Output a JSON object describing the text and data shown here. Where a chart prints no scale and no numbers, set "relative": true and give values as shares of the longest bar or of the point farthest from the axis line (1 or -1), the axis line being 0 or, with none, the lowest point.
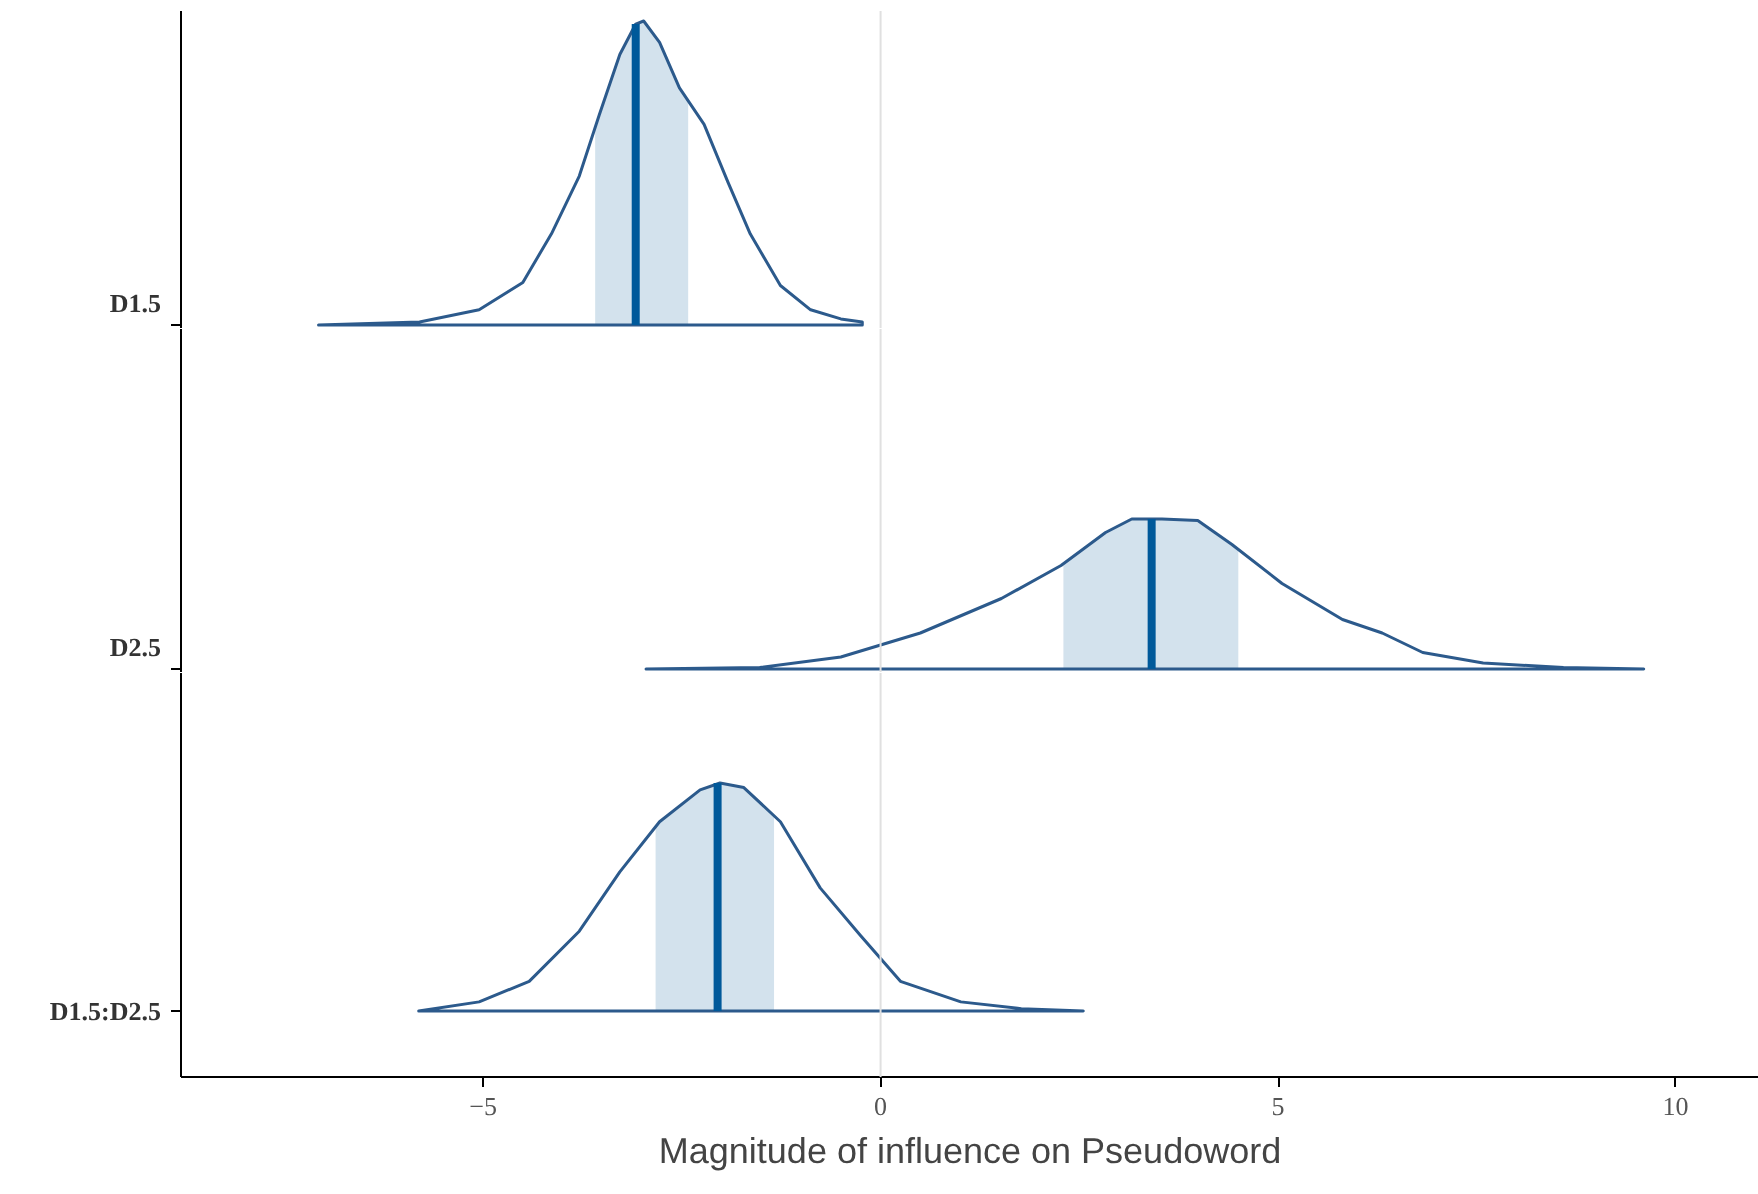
{
  "chart_data": [
    {
      "type": "area",
      "relative": true,
      "xticks": [
        -5,
        0,
        5,
        10
      ],
      "tick_labels": false,
      "grid": false,
      "ref_lines": [
        {
          "axis": "x",
          "value": 0,
          "color": "#e0e0e0"
        }
      ],
      "bands": [
        {
          "axis": "x",
          "from": -3.59,
          "to": -2.42,
          "color": "#d1e1ec"
        }
      ],
      "series": [
        {
          "name": "D1.5",
          "color": "#2c5a8c",
          "x": [
            -7.07,
            -5.8,
            -5.05,
            -4.5,
            -4.14,
            -3.79,
            -3.54,
            -3.28,
            -3.08,
            -2.98,
            -2.78,
            -2.53,
            -2.22,
            -1.92,
            -1.64,
            -1.26,
            -0.88,
            -0.5,
            -0.23
          ],
          "values": [
            0,
            0.01,
            0.05,
            0.14,
            0.3,
            0.49,
            0.69,
            0.89,
            0.99,
            1,
            0.93,
            0.78,
            0.66,
            0.47,
            0.3,
            0.13,
            0.05,
            0.02,
            0.01
          ]
        },
        {
          "type": "line",
          "color": "#00599a",
          "x": [
            -3.08,
            -3.08
          ],
          "values": [
            0,
            0.99
          ]
        }
      ]
    },
    {
      "type": "area",
      "relative": true,
      "xticks": [
        -5,
        0,
        5,
        10
      ],
      "tick_labels": false,
      "grid": false,
      "ref_lines": [
        {
          "axis": "x",
          "value": 0,
          "color": "#e0e0e0"
        }
      ],
      "bands": [
        {
          "axis": "x",
          "from": 2.3,
          "to": 4.5,
          "color": "#d1e1ec"
        }
      ],
      "series": [
        {
          "name": "D2.5",
          "color": "#2c5a8c",
          "x": [
            -2.95,
            -1.52,
            -0.5,
            0.5,
            1.52,
            2.27,
            2.83,
            3.16,
            3.54,
            3.99,
            4.42,
            5.05,
            5.81,
            6.31,
            6.82,
            7.58,
            8.59,
            9.6
          ],
          "values": [
            0,
            0.01,
            0.08,
            0.24,
            0.47,
            0.69,
            0.91,
            1,
            1,
            0.99,
            0.83,
            0.57,
            0.33,
            0.24,
            0.11,
            0.04,
            0.01,
            0
          ]
        },
        {
          "type": "line",
          "color": "#00599a",
          "x": [
            3.41,
            3.41
          ],
          "values": [
            0,
            1
          ]
        }
      ]
    },
    {
      "type": "area",
      "relative": true,
      "xlim": [
        -8.8,
        11.05
      ],
      "xticks": [
        -5,
        0,
        5,
        10
      ],
      "tick_labels": "x",
      "grid": false,
      "xlabel": "Magnitude of influence on Pseudoword",
      "ref_lines": [
        {
          "axis": "x",
          "value": 0,
          "color": "#e0e0e0"
        }
      ],
      "bands": [
        {
          "axis": "x",
          "from": -2.83,
          "to": -1.34,
          "color": "#d1e1ec"
        }
      ],
      "series": [
        {
          "name": "D1.5:D2.5",
          "color": "#2c5a8c",
          "x": [
            -5.81,
            -5.05,
            -4.42,
            -3.79,
            -3.28,
            -2.78,
            -2.27,
            -2.02,
            -1.72,
            -1.26,
            -0.76,
            -0.25,
            0.25,
            1.01,
            1.77,
            2.55
          ],
          "values": [
            0,
            0.04,
            0.13,
            0.35,
            0.61,
            0.83,
            0.97,
            1,
            0.98,
            0.83,
            0.54,
            0.33,
            0.13,
            0.04,
            0.01,
            0
          ]
        },
        {
          "type": "line",
          "color": "#00599a",
          "x": [
            -2.05,
            -2.05
          ],
          "values": [
            0,
            1
          ]
        }
      ]
    }
  ]
}
